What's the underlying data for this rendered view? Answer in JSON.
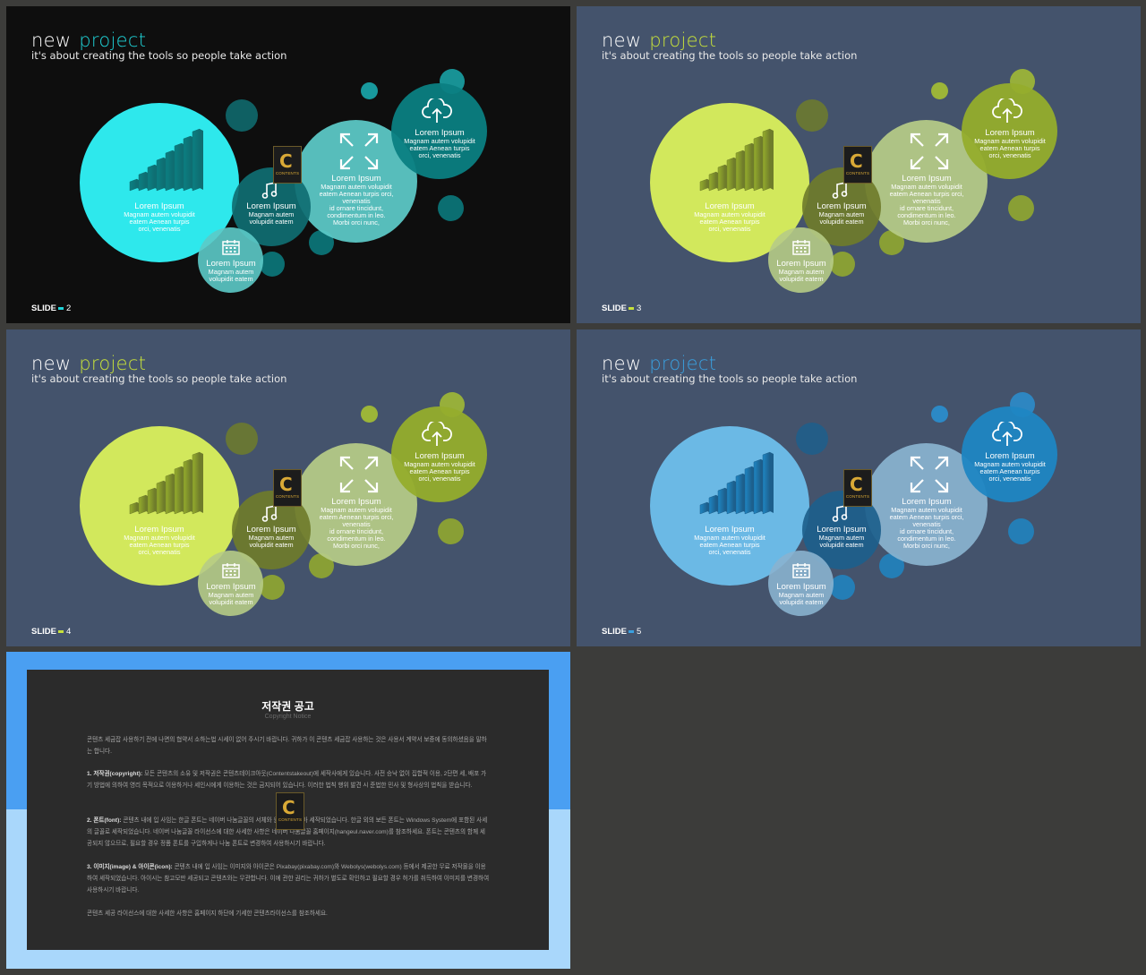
{
  "slides": [
    {
      "title_main": "new",
      "title_accent": "project",
      "subtitle": "it's about creating the tools so people take action",
      "slide_label": "SLIDE",
      "slide_number": "2",
      "colors": {
        "bg": "#0e0e0e",
        "accent": "#1fd3d8",
        "big": "#2ff0f4",
        "mid": "#5ccac8",
        "dark": "#0f6e72",
        "cloud": "#0b7f82",
        "small": "#1aa9ad"
      }
    },
    {
      "title_main": "new",
      "title_accent": "project",
      "subtitle": "it's about creating the tools so people take action",
      "slide_label": "SLIDE",
      "slide_number": "3",
      "colors": {
        "bg": "#44536c",
        "accent": "#c7e13a",
        "big": "#d7ed5c",
        "mid": "#b6cb86",
        "dark": "#6f7c2b",
        "cloud": "#95ad2c",
        "small": "#a6c033"
      }
    },
    {
      "title_main": "new",
      "title_accent": "project",
      "subtitle": "it's about creating the tools so people take action",
      "slide_label": "SLIDE",
      "slide_number": "4",
      "colors": {
        "bg": "#44536c",
        "accent": "#c7e13a",
        "big": "#d7ed5c",
        "mid": "#b6cb86",
        "dark": "#6f7c2b",
        "cloud": "#95ad2c",
        "small": "#a6c033"
      }
    },
    {
      "title_main": "new",
      "title_accent": "project",
      "subtitle": "it's about creating the tools so people take action",
      "slide_label": "SLIDE",
      "slide_number": "5",
      "colors": {
        "bg": "#44536c",
        "accent": "#3aa0e0",
        "big": "#6cbde9",
        "mid": "#89b3cf",
        "dark": "#1d5f8c",
        "cloud": "#1f86c3",
        "small": "#2a8fd0"
      }
    }
  ],
  "circles": {
    "big": {
      "heading": "Lorem Ipsum",
      "body": [
        "Magnam autem volupidit",
        "eatem Aenean turpis",
        "orci, venenatis"
      ]
    },
    "music": {
      "heading": "Lorem Ipsum",
      "body": [
        "Magnam autem",
        "volupidit eatem"
      ]
    },
    "calendar": {
      "heading": "Lorem Ipsum",
      "body": [
        "Magnam autem",
        "volupidit eatem"
      ]
    },
    "expand": {
      "heading": "Lorem Ipsum",
      "body": [
        "Magnam autem volupidit",
        "eatem Aenean turpis orci,",
        "venenatis",
        "id ornare tincidunt,",
        "condimentum in leo.",
        "Morbi orci nunc,"
      ]
    },
    "cloud": {
      "heading": "Lorem Ipsum",
      "body": [
        "Magnam autem volupidit",
        "eatem Aenean turpis",
        "orci, venenatis"
      ]
    }
  },
  "badge": {
    "letter": "C",
    "text": "CONTENTS"
  },
  "icons": {
    "music": "music-note-icon",
    "calendar": "calendar-icon",
    "expand": "expand-arrows-icon",
    "cloud": "cloud-upload-icon",
    "chart": "bar-chart-icon"
  },
  "notice": {
    "title": "저작권 공고",
    "subtitle": "Copyright Notice",
    "intro": "콘텐츠 세금잡 사용하기 전에 나면의 협약서 소하는법 시세이 없어 주시기 바랍니다. 귀하가 이 콘텐츠 세금잡 사용하는 것은 사용서 계약서 보증에 동의하셨음을 말하는 합니다.",
    "p1_label": "1. 저작권(copyright):",
    "p1_text": " 모든 콘텐츠의 소유 및 저작권은 콘텐츠테이크아웃(Contentstakeout)에 세작사에게 있습니다. 사전 승낙 없이 집합적 이용, 2단편 세, 배포 가기 방법에 의하여 영리 목적으로 이용하거나 세인시에게 이용하는 것은 금지되어 있습니다. 이러한 법칙 행위 발견 시 준법한 민사 및 형사상의 법칙을 받습니다.",
    "p2_label": "2. 폰트(font):",
    "p2_text": " 콘텐츠 내에 입 사임는 한글 폰트는 네이버 나눔글꼴의 서체와 윈도우에 사아 세작되었습니다. 한글 외의 보든 폰트는 Windows System에 포함된 사세의 글꼴로 세작되었습니다. 네이버 나눔글꼴 라이선스에 대한 사세한 사항은 네이버 나눔글꼴 홈페이지(hangeul.naver.com)를 참조하세요. 폰트는 콘텐츠의 함께 세공되지 않으므로, 필요할 경우 정품 폰트를 구입하게나 나눔 폰트로 변경하여 사용하시기 바랍니다.",
    "p3_label": "3. 이미지(image) & 아이콘(icon):",
    "p3_text": " 콘텐츠 내에 입 사임는 이미지와 아이콘은 Pixabay(pixabay.com)와 Webolys(webolys.com) 등에서 제공한 무료 저작물을 이용하여 세작되었습니다. 아이시는 참고모만 세공되고 콘텐츠와는 무관합니다. 이에 관한 권리는 귀하가 별도로 확인하고 필요할 경우 허가를 취득하여 이미지를 변경하여 사용하시기 바랍니다.",
    "outro": "콘텐츠 세공 라이선스에 대한 사세한 사항은 홈페이지 하단에 기세한 콘텐츠라이선스를 참조하세요."
  }
}
